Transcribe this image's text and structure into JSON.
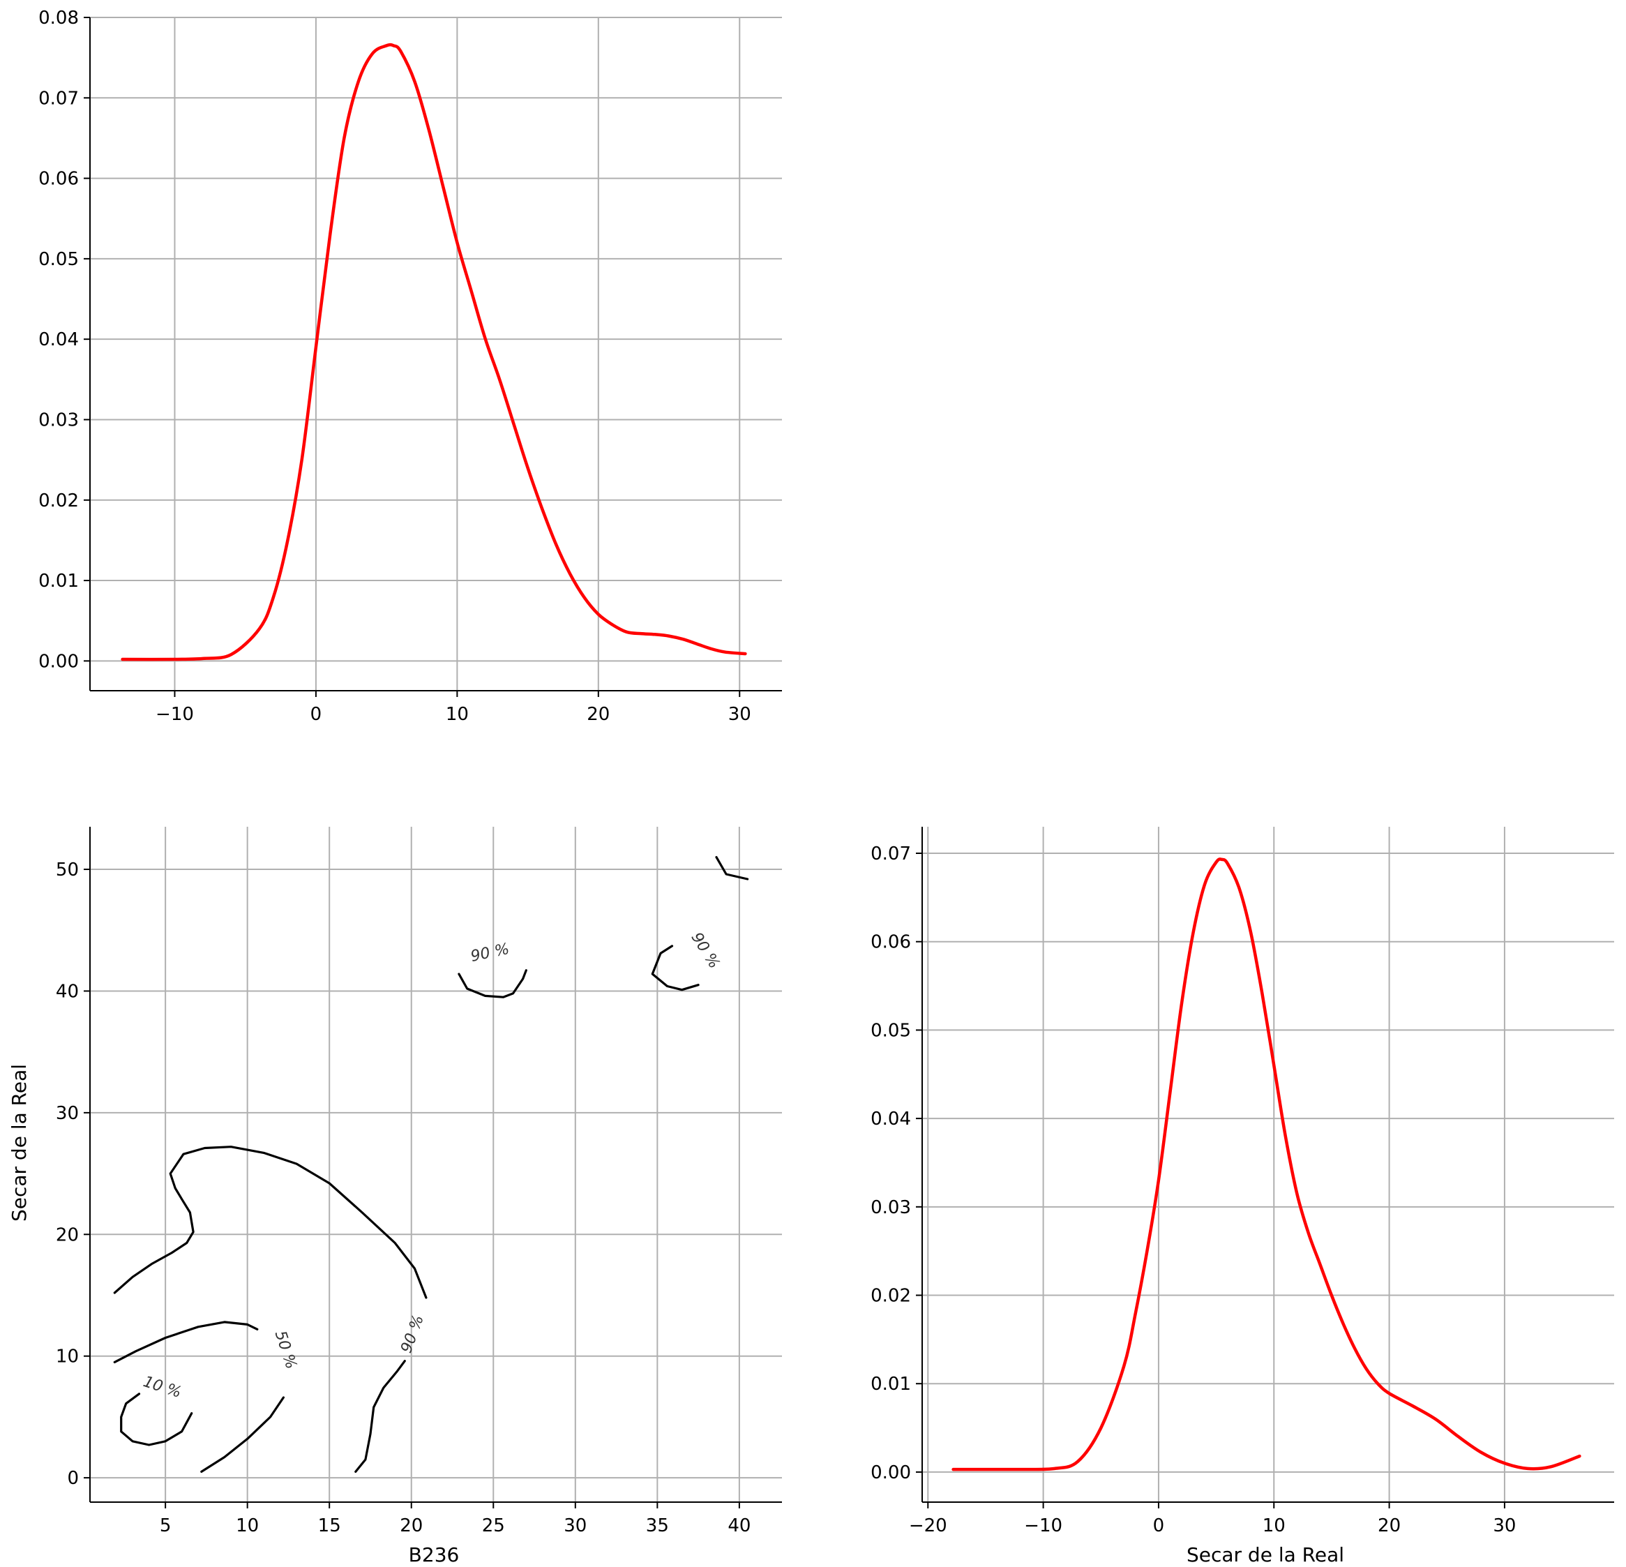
{
  "colors": {
    "kde_line": "#ff0000",
    "contour_line": "#000000",
    "grid": "#b0b0b0",
    "axis": "#000000",
    "background": "#ffffff"
  },
  "chart_data": [
    {
      "id": "top-left",
      "type": "line",
      "title": "",
      "xlabel": "",
      "ylabel": "",
      "xlim": [
        -16,
        33
      ],
      "ylim": [
        -0.0037,
        0.08
      ],
      "xticks": [
        -10,
        0,
        10,
        20,
        30
      ],
      "xtick_labels": [
        "−10",
        "0",
        "10",
        "20",
        "30"
      ],
      "yticks": [
        0.0,
        0.01,
        0.02,
        0.03,
        0.04,
        0.05,
        0.06,
        0.07,
        0.08
      ],
      "ytick_labels": [
        "0.00",
        "0.01",
        "0.02",
        "0.03",
        "0.04",
        "0.05",
        "0.06",
        "0.07",
        "0.08"
      ],
      "grid": true,
      "series": [
        {
          "color": "#ff0000",
          "x": [
            -13.7,
            -10,
            -8,
            -6,
            -4,
            -3,
            -2,
            -1,
            0,
            1,
            2,
            3,
            4,
            5,
            5.5,
            6,
            7,
            8,
            9,
            10,
            11,
            12,
            13,
            14,
            15,
            16,
            17,
            18,
            19,
            20,
            21,
            22,
            23,
            24,
            25,
            26,
            27,
            28,
            29,
            30.4
          ],
          "y": [
            0.0002,
            0.0002,
            0.0003,
            0.0008,
            0.004,
            0.008,
            0.015,
            0.025,
            0.039,
            0.053,
            0.065,
            0.072,
            0.0755,
            0.0765,
            0.0765,
            0.0758,
            0.072,
            0.066,
            0.059,
            0.052,
            0.046,
            0.04,
            0.035,
            0.0295,
            0.024,
            0.019,
            0.0145,
            0.0108,
            0.0079,
            0.0058,
            0.0045,
            0.0036,
            0.0034,
            0.0033,
            0.0031,
            0.0027,
            0.0021,
            0.0015,
            0.0011,
            0.0009
          ]
        }
      ]
    },
    {
      "id": "bottom-left",
      "type": "contour",
      "title": "",
      "xlabel": "B236",
      "ylabel": "Secar de la Real",
      "xlim": [
        0.4,
        42.6
      ],
      "ylim": [
        -2.0,
        53.5
      ],
      "xticks": [
        5,
        10,
        15,
        20,
        25,
        30,
        35,
        40
      ],
      "xtick_labels": [
        "5",
        "10",
        "15",
        "20",
        "25",
        "30",
        "35",
        "40"
      ],
      "yticks": [
        0,
        10,
        20,
        30,
        40,
        50
      ],
      "ytick_labels": [
        "0",
        "10",
        "20",
        "30",
        "40",
        "50"
      ],
      "grid": true,
      "contours": [
        {
          "level": "10 %",
          "points": [
            [
              3.4,
              6.9
            ],
            [
              2.6,
              6.1
            ],
            [
              2.3,
              5.0
            ],
            [
              2.3,
              3.8
            ],
            [
              3.0,
              3.0
            ],
            [
              4.0,
              2.7
            ],
            [
              5.0,
              3.0
            ],
            [
              6.0,
              3.8
            ],
            [
              6.6,
              5.3
            ]
          ]
        },
        {
          "level": "50 %",
          "points": [
            [
              1.9,
              9.5
            ],
            [
              3.2,
              10.4
            ],
            [
              5.0,
              11.5
            ],
            [
              7.0,
              12.4
            ],
            [
              8.6,
              12.8
            ],
            [
              10.0,
              12.6
            ],
            [
              10.6,
              12.2
            ]
          ]
        },
        {
          "level": "50 %",
          "points": [
            [
              7.2,
              0.5
            ],
            [
              8.6,
              1.7
            ],
            [
              10.0,
              3.2
            ],
            [
              11.4,
              5.0
            ],
            [
              12.2,
              6.6
            ]
          ]
        },
        {
          "level": "90 %",
          "points": [
            [
              1.9,
              15.2
            ],
            [
              3.0,
              16.5
            ],
            [
              4.2,
              17.6
            ],
            [
              5.4,
              18.5
            ],
            [
              6.3,
              19.3
            ],
            [
              6.7,
              20.2
            ],
            [
              6.5,
              21.8
            ],
            [
              6.0,
              22.9
            ],
            [
              5.6,
              23.8
            ],
            [
              5.3,
              25.0
            ],
            [
              6.1,
              26.6
            ],
            [
              7.4,
              27.1
            ],
            [
              9.0,
              27.2
            ],
            [
              11.0,
              26.7
            ],
            [
              13.0,
              25.8
            ],
            [
              15.0,
              24.2
            ],
            [
              17.0,
              21.8
            ],
            [
              19.0,
              19.3
            ],
            [
              20.2,
              17.2
            ],
            [
              20.9,
              14.8
            ]
          ]
        },
        {
          "level": "90 %",
          "points": [
            [
              16.6,
              0.5
            ],
            [
              17.2,
              1.5
            ],
            [
              17.5,
              3.6
            ],
            [
              17.7,
              5.8
            ],
            [
              18.3,
              7.4
            ],
            [
              19.1,
              8.7
            ],
            [
              19.6,
              9.6
            ]
          ]
        },
        {
          "level": "90 %",
          "points": [
            [
              22.9,
              41.4
            ],
            [
              23.4,
              40.2
            ],
            [
              24.5,
              39.6
            ],
            [
              25.6,
              39.5
            ],
            [
              26.2,
              39.8
            ],
            [
              26.8,
              41.0
            ],
            [
              27.0,
              41.7
            ]
          ]
        },
        {
          "level": "90 %",
          "points": [
            [
              35.9,
              43.7
            ],
            [
              35.2,
              43.1
            ],
            [
              34.7,
              41.4
            ],
            [
              35.6,
              40.4
            ],
            [
              36.5,
              40.1
            ],
            [
              37.5,
              40.5
            ]
          ]
        },
        {
          "level": "90 %",
          "points": [
            [
              38.6,
              51.0
            ],
            [
              39.2,
              49.6
            ],
            [
              40.5,
              49.2
            ]
          ]
        }
      ],
      "contour_labels": [
        {
          "text": "10 %",
          "x": 4.8,
          "y": 7.4,
          "rotation": 18
        },
        {
          "text": "50 %",
          "x": 12.3,
          "y": 10.5,
          "rotation": 72
        },
        {
          "text": "90 %",
          "x": 20.1,
          "y": 11.8,
          "rotation": -70
        },
        {
          "text": "90 %",
          "x": 24.8,
          "y": 43.1,
          "rotation": -12
        },
        {
          "text": "90 %",
          "x": 37.9,
          "y": 43.3,
          "rotation": 58
        }
      ]
    },
    {
      "id": "bottom-right",
      "type": "line",
      "title": "",
      "xlabel": "Secar de la Real",
      "ylabel": "",
      "xlim": [
        -20.5,
        39.5
      ],
      "ylim": [
        -0.0034,
        0.073
      ],
      "xticks": [
        -20,
        -10,
        0,
        10,
        20,
        30
      ],
      "xtick_labels": [
        "−20",
        "−10",
        "0",
        "10",
        "20",
        "30"
      ],
      "yticks": [
        0.0,
        0.01,
        0.02,
        0.03,
        0.04,
        0.05,
        0.06,
        0.07
      ],
      "ytick_labels": [
        "0.00",
        "0.01",
        "0.02",
        "0.03",
        "0.04",
        "0.05",
        "0.06",
        "0.07"
      ],
      "grid": true,
      "series": [
        {
          "color": "#ff0000",
          "x": [
            -17.8,
            -12,
            -9,
            -7,
            -5,
            -3,
            -2,
            -1,
            0,
            1,
            2,
            3,
            4,
            5,
            5.5,
            6,
            7,
            8,
            9,
            10,
            11,
            12,
            13,
            14,
            15,
            16,
            17,
            18,
            19,
            20,
            22,
            24,
            26,
            28,
            30,
            32,
            34,
            36.5
          ],
          "y": [
            0.0003,
            0.0003,
            0.0004,
            0.0012,
            0.005,
            0.012,
            0.018,
            0.025,
            0.033,
            0.043,
            0.053,
            0.061,
            0.0665,
            0.069,
            0.0693,
            0.0688,
            0.066,
            0.061,
            0.054,
            0.046,
            0.038,
            0.0315,
            0.027,
            0.0235,
            0.02,
            0.0168,
            0.014,
            0.0117,
            0.01,
            0.0089,
            0.0075,
            0.006,
            0.004,
            0.0022,
            0.001,
            0.0004,
            0.0006,
            0.0018
          ]
        }
      ]
    }
  ]
}
